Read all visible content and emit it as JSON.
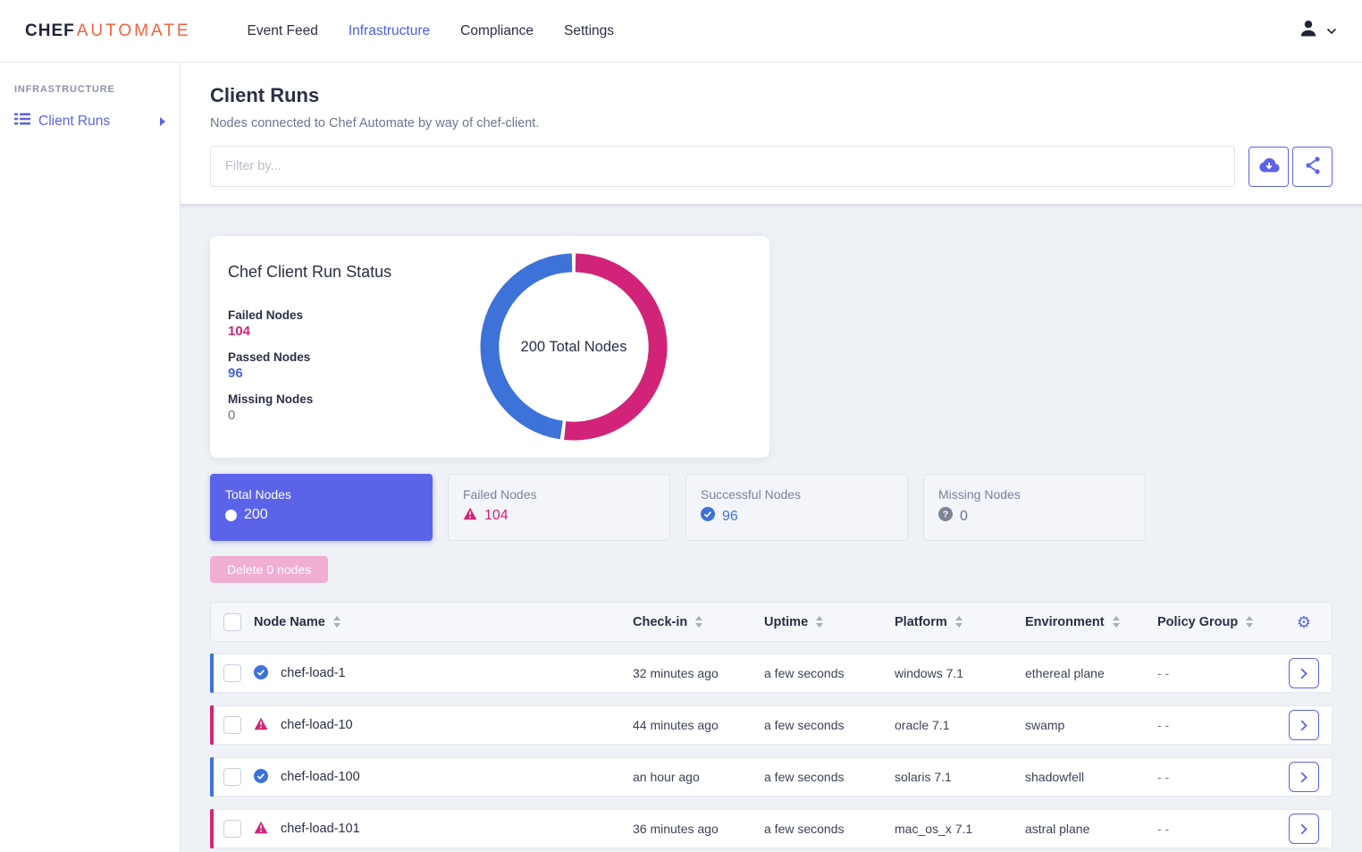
{
  "nav": {
    "logo": {
      "chef": "CHEF",
      "automate": "AUTOMATE"
    },
    "items": [
      {
        "label": "Event Feed",
        "active": false
      },
      {
        "label": "Infrastructure",
        "active": true
      },
      {
        "label": "Compliance",
        "active": false
      },
      {
        "label": "Settings",
        "active": false
      }
    ]
  },
  "sidebar": {
    "section": "INFRASTRUCTURE",
    "items": [
      {
        "label": "Client Runs",
        "active": true
      }
    ]
  },
  "page": {
    "title": "Client Runs",
    "subtitle": "Nodes connected to Chef Automate by way of chef-client."
  },
  "toolbar": {
    "filter_placeholder": "Filter by...",
    "download_icon": "cloud-download-icon",
    "share_icon": "share-icon"
  },
  "chart_data": {
    "type": "pie",
    "donut": true,
    "title": "Chef Client Run Status",
    "center_label": "200 Total Nodes",
    "total": 200,
    "legend_position": "left",
    "series": [
      {
        "name": "Failed Nodes",
        "value": 104,
        "color": "#d12478"
      },
      {
        "name": "Passed Nodes",
        "value": 96,
        "color": "#3d72d9"
      },
      {
        "name": "Missing Nodes",
        "value": 0,
        "color": "#9aa0ae"
      }
    ]
  },
  "summary_cards": [
    {
      "label": "Total Nodes",
      "value": "200",
      "icon": "circle-icon",
      "selected": true
    },
    {
      "label": "Failed Nodes",
      "value": "104",
      "icon": "warning-triangle-icon",
      "selected": false
    },
    {
      "label": "Successful Nodes",
      "value": "96",
      "icon": "check-circle-icon",
      "selected": false
    },
    {
      "label": "Missing Nodes",
      "value": "0",
      "icon": "question-circle-icon",
      "selected": false
    }
  ],
  "actions": {
    "delete_label": "Delete 0 nodes"
  },
  "table": {
    "columns": [
      {
        "label": "Node Name",
        "sortable": true
      },
      {
        "label": "Check-in",
        "sortable": true
      },
      {
        "label": "Uptime",
        "sortable": true
      },
      {
        "label": "Platform",
        "sortable": true
      },
      {
        "label": "Environment",
        "sortable": true
      },
      {
        "label": "Policy Group",
        "sortable": true
      }
    ],
    "rows": [
      {
        "status": "success",
        "name": "chef-load-1",
        "check_in": "32 minutes ago",
        "uptime": "a few seconds",
        "platform": "windows 7.1",
        "environment": "ethereal plane",
        "policy_group": "- -"
      },
      {
        "status": "failed",
        "name": "chef-load-10",
        "check_in": "44 minutes ago",
        "uptime": "a few seconds",
        "platform": "oracle 7.1",
        "environment": "swamp",
        "policy_group": "- -"
      },
      {
        "status": "success",
        "name": "chef-load-100",
        "check_in": "an hour ago",
        "uptime": "a few seconds",
        "platform": "solaris 7.1",
        "environment": "shadowfell",
        "policy_group": "- -"
      },
      {
        "status": "failed",
        "name": "chef-load-101",
        "check_in": "36 minutes ago",
        "uptime": "a few seconds",
        "platform": "mac_os_x 7.1",
        "environment": "astral plane",
        "policy_group": "- -"
      }
    ]
  },
  "colors": {
    "accent": "#5b63e8",
    "failed": "#d12478",
    "passed": "#3d72d9",
    "missing": "#7d8493",
    "brand_orange": "#f4623e"
  }
}
